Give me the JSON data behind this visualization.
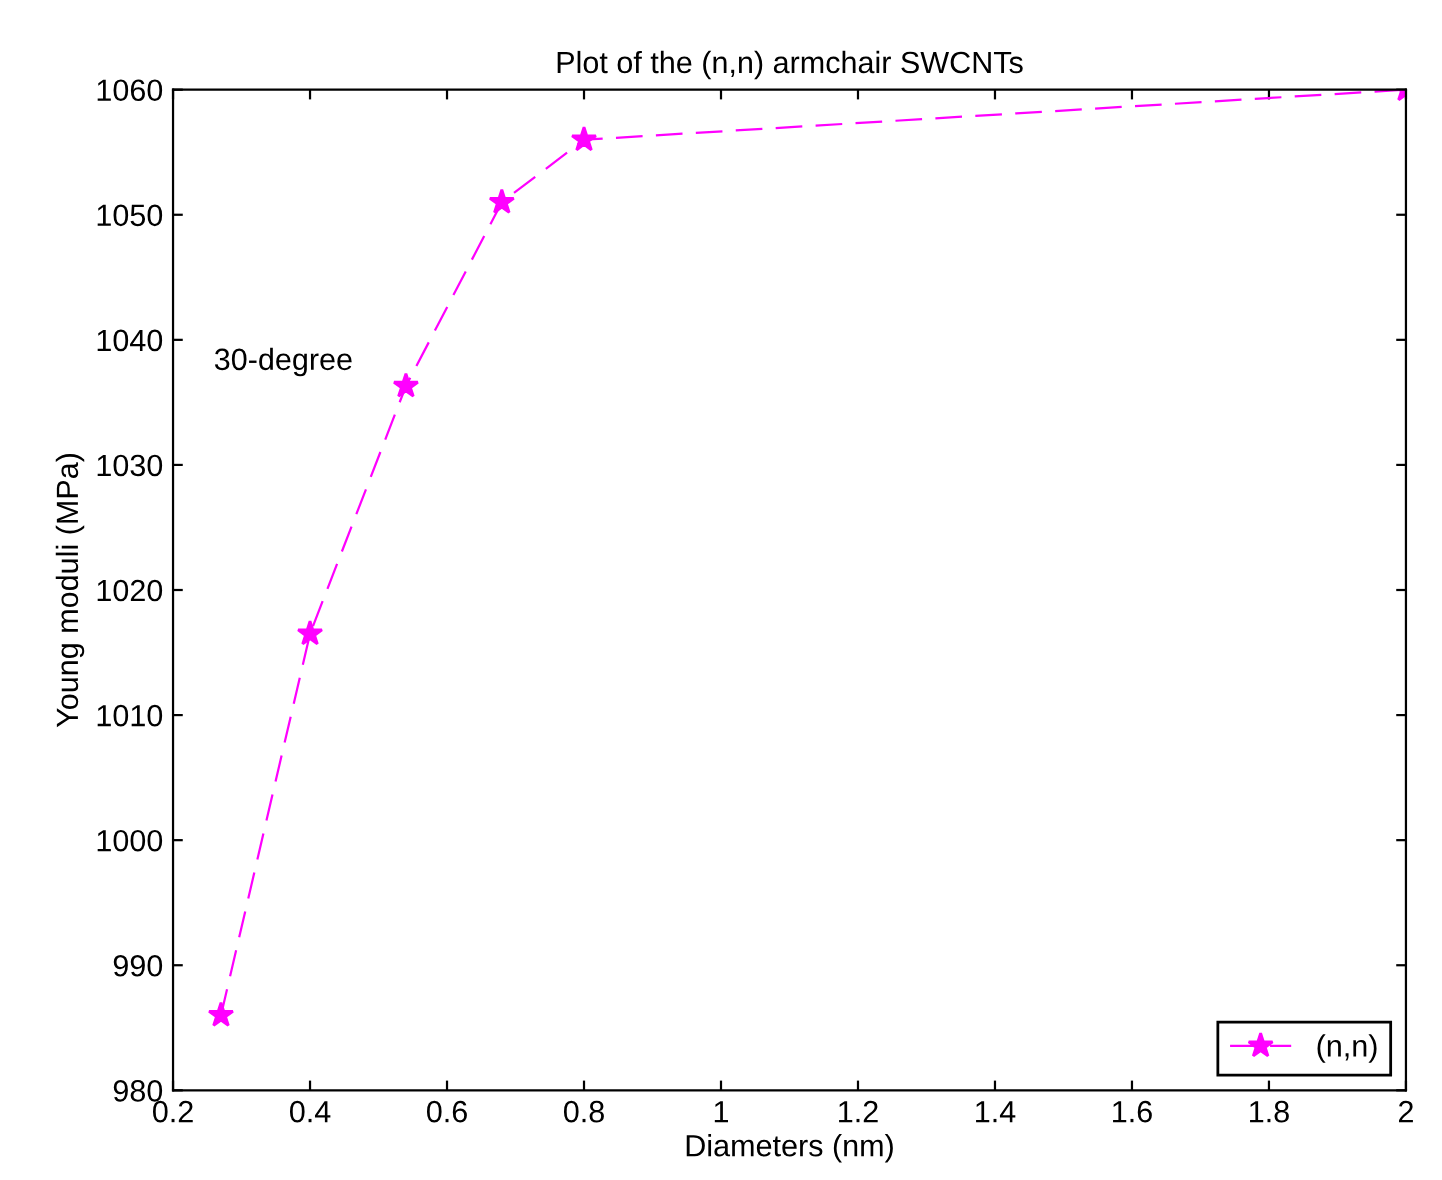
{
  "chart_data": {
    "type": "line",
    "title": "Plot of the (n,n) armchair SWCNTs",
    "xlabel": "Diameters (nm)",
    "ylabel": "Young moduli (MPa)",
    "x": [
      0.27,
      0.4,
      0.54,
      0.68,
      0.8,
      2.0
    ],
    "series": [
      {
        "name": "(n,n)",
        "color": "#ff00ff",
        "values": [
          986,
          1016.5,
          1036.3,
          1051,
          1056,
          1060
        ]
      }
    ],
    "annotations": [
      "30-degree"
    ],
    "xlim": [
      0.2,
      2
    ],
    "ylim": [
      980,
      1060
    ],
    "xticks": [
      0.2,
      0.4,
      0.6,
      0.8,
      1,
      1.2,
      1.4,
      1.6,
      1.8,
      2
    ],
    "yticks": [
      980,
      990,
      1000,
      1010,
      1020,
      1030,
      1040,
      1050,
      1060
    ],
    "grid": false,
    "legend": "bottom right",
    "marker": "star",
    "line_style": "dashed"
  }
}
